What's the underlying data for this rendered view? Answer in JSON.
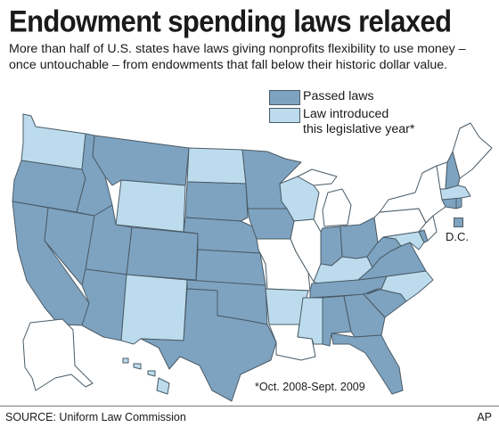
{
  "header": {
    "title": "Endowment spending laws relaxed",
    "subtitle": "More than half of U.S. states have laws giving nonprofits flexibility to use money – once untouchable – from endowments that fall below their historic dollar value."
  },
  "legend": {
    "passed_label": "Passed laws",
    "introduced_label_line1": "Law introduced",
    "introduced_label_line2": "this legislative year*"
  },
  "colors": {
    "passed": "#7ea3c1",
    "introduced": "#bcdced",
    "none": "#ffffff",
    "border": "#4a5b66"
  },
  "map": {
    "dc_label": "D.C.",
    "footnote": "*Oct. 2008-Sept. 2009"
  },
  "footer": {
    "source": "SOURCE: Uniform Law Commission",
    "credit": "AP"
  }
}
